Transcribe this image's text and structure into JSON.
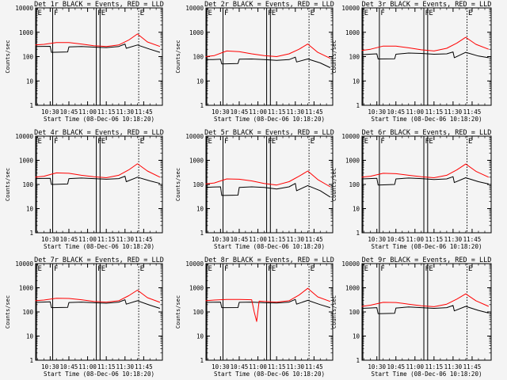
{
  "chart_data": {
    "type": "line",
    "scale": "log-y",
    "xlabel": "Start Time (08-Dec-06 10:18:20)",
    "ylabel": "Counts/sec",
    "x_tick_labels": [
      "10:30",
      "10:45",
      "11:00",
      "11:15",
      "11:30",
      "11:45"
    ],
    "x_ticks": [
      "10:30",
      "10:45",
      "11:00",
      "11:15",
      "11:30",
      "11:45"
    ],
    "x_range": [
      "10:18:20",
      "12:00"
    ],
    "y_tick_labels": [
      "1",
      "10",
      "100",
      "1000",
      "10000"
    ],
    "ylim": [
      1,
      10000
    ],
    "colors": {
      "events": "#000000",
      "lld": "#ff0000"
    },
    "markers": [
      {
        "label": "E",
        "time": "10:19",
        "style": "solid"
      },
      {
        "label": "F",
        "time": "10:32",
        "style": "solid"
      },
      {
        "label": "F",
        "time": "11:07",
        "style": "solid"
      },
      {
        "label": "E",
        "time": "11:10",
        "style": "solid"
      },
      {
        "label": "E",
        "time": "11:41",
        "style": "dotted"
      }
    ],
    "panels": [
      {
        "title": "Det 1r BLACK = Events, RED = LLD",
        "series": [
          {
            "name": "Events",
            "color": "#000000",
            "x": [
              "10:18",
              "10:24",
              "10:30",
              "10:31",
              "10:44",
              "10:45",
              "10:55",
              "11:05",
              "11:15",
              "11:25",
              "11:30",
              "11:31",
              "11:40",
              "11:50",
              "11:58"
            ],
            "values": [
              260,
              262,
              265,
              150,
              155,
              250,
              258,
              245,
              235,
              260,
              330,
              220,
              300,
              200,
              150
            ]
          },
          {
            "name": "LLD",
            "color": "#ff0000",
            "x": [
              "10:18",
              "10:25",
              "10:35",
              "10:45",
              "10:55",
              "11:05",
              "11:15",
              "11:25",
              "11:33",
              "11:40",
              "11:48",
              "11:58"
            ],
            "values": [
              300,
              320,
              380,
              375,
              330,
              280,
              260,
              300,
              480,
              850,
              400,
              260
            ]
          }
        ]
      },
      {
        "title": "Det 2r BLACK = Events, RED = LLD",
        "series": [
          {
            "name": "Events",
            "color": "#000000",
            "x": [
              "10:18",
              "10:24",
              "10:30",
              "10:31",
              "10:44",
              "10:45",
              "10:55",
              "11:05",
              "11:15",
              "11:25",
              "11:30",
              "11:31",
              "11:40",
              "11:50",
              "11:58"
            ],
            "values": [
              75,
              76,
              78,
              50,
              52,
              78,
              80,
              75,
              70,
              75,
              95,
              60,
              80,
              55,
              35
            ]
          },
          {
            "name": "LLD",
            "color": "#ff0000",
            "x": [
              "10:18",
              "10:25",
              "10:35",
              "10:45",
              "10:55",
              "11:05",
              "11:15",
              "11:25",
              "11:33",
              "11:40",
              "11:48",
              "11:58"
            ],
            "values": [
              100,
              110,
              170,
              160,
              130,
              110,
              100,
              130,
              200,
              330,
              150,
              85
            ]
          }
        ]
      },
      {
        "title": "Det 3r BLACK = Events, RED = LLD",
        "series": [
          {
            "name": "Events",
            "color": "#000000",
            "x": [
              "10:18",
              "10:24",
              "10:30",
              "10:31",
              "10:44",
              "10:45",
              "10:55",
              "11:05",
              "11:15",
              "11:25",
              "11:30",
              "11:31",
              "11:40",
              "11:50",
              "11:58"
            ],
            "values": [
              120,
              125,
              130,
              80,
              82,
              125,
              140,
              135,
              125,
              130,
              155,
              90,
              150,
              105,
              90
            ]
          },
          {
            "name": "LLD",
            "color": "#ff0000",
            "x": [
              "10:18",
              "10:25",
              "10:35",
              "10:45",
              "10:55",
              "11:05",
              "11:15",
              "11:25",
              "11:33",
              "11:40",
              "11:48",
              "11:58"
            ],
            "values": [
              180,
              200,
              270,
              270,
              230,
              190,
              170,
              220,
              360,
              620,
              320,
              200
            ]
          }
        ]
      },
      {
        "title": "Det 4r BLACK = Events, RED = LLD",
        "series": [
          {
            "name": "Events",
            "color": "#000000",
            "x": [
              "10:18",
              "10:24",
              "10:30",
              "10:31",
              "10:44",
              "10:45",
              "10:55",
              "11:05",
              "11:15",
              "11:25",
              "11:30",
              "11:31",
              "11:40",
              "11:50",
              "11:58"
            ],
            "values": [
              175,
              178,
              180,
              100,
              105,
              175,
              185,
              175,
              165,
              175,
              220,
              130,
              200,
              140,
              110
            ]
          },
          {
            "name": "LLD",
            "color": "#ff0000",
            "x": [
              "10:18",
              "10:25",
              "10:35",
              "10:45",
              "10:55",
              "11:05",
              "11:15",
              "11:25",
              "11:33",
              "11:40",
              "11:48",
              "11:58"
            ],
            "values": [
              200,
              220,
              300,
              290,
              240,
              210,
              190,
              240,
              400,
              720,
              360,
              200
            ]
          }
        ]
      },
      {
        "title": "Det 5r BLACK = Events, RED = LLD",
        "series": [
          {
            "name": "Events",
            "color": "#000000",
            "x": [
              "10:18",
              "10:24",
              "10:30",
              "10:31",
              "10:44",
              "10:45",
              "10:55",
              "11:05",
              "11:15",
              "11:25",
              "11:30",
              "11:31",
              "11:40",
              "11:50",
              "11:58"
            ],
            "values": [
              75,
              78,
              80,
              35,
              36,
              75,
              80,
              75,
              65,
              80,
              110,
              55,
              90,
              55,
              30
            ]
          },
          {
            "name": "LLD",
            "color": "#ff0000",
            "x": [
              "10:18",
              "10:25",
              "10:35",
              "10:45",
              "10:55",
              "11:05",
              "11:15",
              "11:25",
              "11:33",
              "11:40",
              "11:48",
              "11:58"
            ],
            "values": [
              105,
              115,
              170,
              165,
              140,
              110,
              95,
              130,
              220,
              360,
              160,
              80
            ]
          }
        ]
      },
      {
        "title": "Det 6r BLACK = Events, RED = LLD",
        "series": [
          {
            "name": "Events",
            "color": "#000000",
            "x": [
              "10:18",
              "10:24",
              "10:30",
              "10:31",
              "10:44",
              "10:45",
              "10:55",
              "11:05",
              "11:15",
              "11:25",
              "11:30",
              "11:31",
              "11:40",
              "11:50",
              "11:58"
            ],
            "values": [
              170,
              175,
              180,
              95,
              100,
              170,
              185,
              175,
              160,
              170,
              210,
              120,
              190,
              130,
              105
            ]
          },
          {
            "name": "LLD",
            "color": "#ff0000",
            "x": [
              "10:18",
              "10:25",
              "10:35",
              "10:45",
              "10:55",
              "11:05",
              "11:15",
              "11:25",
              "11:33",
              "11:40",
              "11:48",
              "11:58"
            ],
            "values": [
              200,
              220,
              290,
              280,
              240,
              210,
              190,
              240,
              400,
              700,
              350,
              200
            ]
          }
        ]
      },
      {
        "title": "Det 7r BLACK = Events, RED = LLD",
        "series": [
          {
            "name": "Events",
            "color": "#000000",
            "x": [
              "10:18",
              "10:24",
              "10:30",
              "10:31",
              "10:44",
              "10:45",
              "10:55",
              "11:05",
              "11:15",
              "11:25",
              "11:30",
              "11:31",
              "11:40",
              "11:50",
              "11:58"
            ],
            "values": [
              250,
              255,
              260,
              150,
              155,
              245,
              255,
              240,
              230,
              255,
              320,
              210,
              290,
              190,
              140
            ]
          },
          {
            "name": "LLD",
            "color": "#ff0000",
            "x": [
              "10:18",
              "10:25",
              "10:35",
              "10:45",
              "10:55",
              "11:05",
              "11:15",
              "11:25",
              "11:33",
              "11:40",
              "11:48",
              "11:58"
            ],
            "values": [
              290,
              310,
              370,
              360,
              320,
              270,
              255,
              290,
              470,
              800,
              390,
              250
            ]
          }
        ]
      },
      {
        "title": "Det 8r BLACK = Events, RED = LLD",
        "series": [
          {
            "name": "Events",
            "color": "#000000",
            "x": [
              "10:18",
              "10:24",
              "10:30",
              "10:31",
              "10:44",
              "10:45",
              "10:55",
              "11:05",
              "11:15",
              "11:25",
              "11:30",
              "11:31",
              "11:40",
              "11:50",
              "11:58"
            ],
            "values": [
              250,
              252,
              255,
              150,
              152,
              250,
              255,
              240,
              235,
              255,
              330,
              210,
              300,
              200,
              150
            ]
          },
          {
            "name": "LLD",
            "color": "#ff0000",
            "x": [
              "10:18",
              "10:25",
              "10:35",
              "10:45",
              "10:55",
              "10:57",
              "10:59",
              "11:01",
              "11:05",
              "11:15",
              "11:25",
              "11:33",
              "11:40",
              "11:48",
              "11:58"
            ],
            "values": [
              290,
              310,
              330,
              330,
              320,
              100,
              40,
              280,
              270,
              255,
              290,
              500,
              950,
              420,
              270
            ]
          }
        ]
      },
      {
        "title": "Det 9r BLACK = Events, RED = LLD",
        "series": [
          {
            "name": "Events",
            "color": "#000000",
            "x": [
              "10:18",
              "10:24",
              "10:30",
              "10:31",
              "10:44",
              "10:45",
              "10:55",
              "11:05",
              "11:15",
              "11:25",
              "11:30",
              "11:31",
              "11:40",
              "11:50",
              "11:58"
            ],
            "values": [
              140,
              145,
              150,
              85,
              88,
              145,
              160,
              150,
              140,
              150,
              185,
              110,
              170,
              115,
              90
            ]
          },
          {
            "name": "LLD",
            "color": "#ff0000",
            "x": [
              "10:18",
              "10:25",
              "10:35",
              "10:45",
              "10:55",
              "11:05",
              "11:15",
              "11:25",
              "11:33",
              "11:40",
              "11:48",
              "11:58"
            ],
            "values": [
              170,
              190,
              250,
              245,
              210,
              180,
              165,
              210,
              340,
              560,
              290,
              170
            ]
          }
        ]
      }
    ]
  }
}
